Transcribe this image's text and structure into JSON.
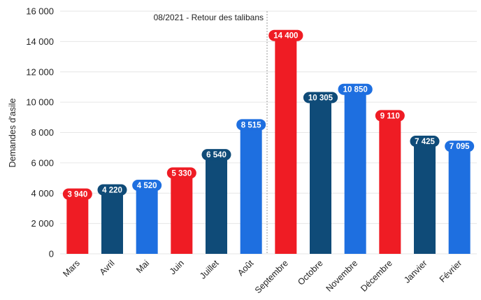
{
  "chart_data": {
    "type": "bar",
    "ylabel": "Demandes d'asile",
    "ylim": [
      0,
      16000
    ],
    "yticks": [
      0,
      2000,
      4000,
      6000,
      8000,
      10000,
      12000,
      14000,
      16000
    ],
    "ytick_labels": [
      "0",
      "2 000",
      "4 000",
      "6 000",
      "8 000",
      "10 000",
      "12 000",
      "14 000",
      "16 000"
    ],
    "grid": true,
    "categories": [
      "Mars",
      "Avril",
      "Mai",
      "Juin",
      "Juillet",
      "Août",
      "Septembre",
      "Octobre",
      "Novembre",
      "Décembre",
      "Janvier",
      "Février"
    ],
    "values": [
      3940,
      4220,
      4520,
      5330,
      6540,
      8515,
      14400,
      10305,
      10850,
      9110,
      7425,
      7095
    ],
    "value_labels": [
      "3 940",
      "4 220",
      "4 520",
      "5 330",
      "6 540",
      "8 515",
      "14 400",
      "10 305",
      "10 850",
      "9 110",
      "7 425",
      "7 095"
    ],
    "colors": [
      "#ef1c24",
      "#0f4b78",
      "#1e6fe0",
      "#ef1c24",
      "#0f4b78",
      "#1e6fe0",
      "#ef1c24",
      "#0f4b78",
      "#1e6fe0",
      "#ef1c24",
      "#0f4b78",
      "#1e6fe0"
    ],
    "annotation": {
      "text": "08/2021 - Retour des talibans",
      "at_category": "Août"
    }
  }
}
